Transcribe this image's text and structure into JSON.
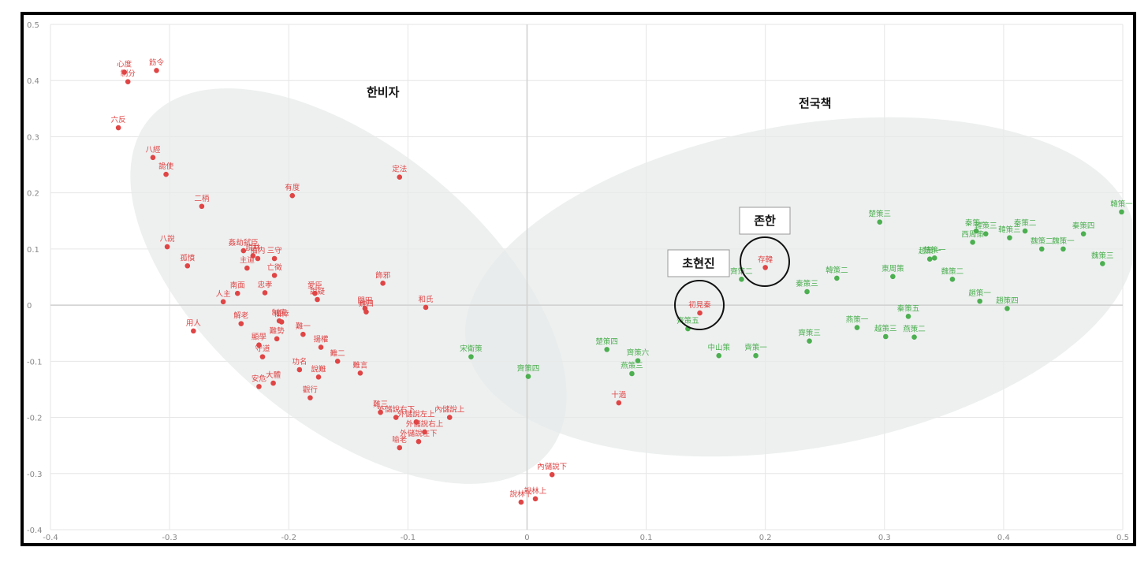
{
  "colors": {
    "hanfeizi": "#e04545",
    "zhanguoce": "#4caf50"
  },
  "group_labels": {
    "hanfeizi": "한비자",
    "zhanguoce": "전국책"
  },
  "callouts": {
    "cunhan": "존한",
    "chuxianqin": "초현진"
  },
  "chart_data": {
    "type": "scatter",
    "xlim": [
      -0.4,
      0.5
    ],
    "ylim": [
      -0.4,
      0.5
    ],
    "grid": true,
    "x_ticks": [
      "-0.4",
      "-0.3",
      "-0.2",
      "-0.1",
      "0",
      "0.1",
      "0.2",
      "0.3",
      "0.4",
      "0.5"
    ],
    "y_ticks": [
      "-0.4",
      "-0.3",
      "-0.2",
      "-0.1",
      "0",
      "0.1",
      "0.2",
      "0.3",
      "0.4",
      "0.5"
    ],
    "series": [
      {
        "name": "한비자",
        "points": [
          {
            "label": "心度",
            "x": -0.338,
            "y": 0.415
          },
          {
            "label": "飭令",
            "x": -0.311,
            "y": 0.418
          },
          {
            "label": "制分",
            "x": -0.335,
            "y": 0.398
          },
          {
            "label": "六反",
            "x": -0.343,
            "y": 0.316
          },
          {
            "label": "八經",
            "x": -0.314,
            "y": 0.263
          },
          {
            "label": "詭使",
            "x": -0.303,
            "y": 0.233
          },
          {
            "label": "二柄",
            "x": -0.273,
            "y": 0.176
          },
          {
            "label": "八說",
            "x": -0.302,
            "y": 0.104
          },
          {
            "label": "孤憤",
            "x": -0.285,
            "y": 0.07
          },
          {
            "label": "姦劫弑臣",
            "x": -0.238,
            "y": 0.097
          },
          {
            "label": "説林",
            "x": -0.23,
            "y": 0.088
          },
          {
            "label": "備内",
            "x": -0.226,
            "y": 0.083
          },
          {
            "label": "三守",
            "x": -0.212,
            "y": 0.083
          },
          {
            "label": "主道",
            "x": -0.235,
            "y": 0.066
          },
          {
            "label": "亡徵",
            "x": -0.212,
            "y": 0.053
          },
          {
            "label": "南面",
            "x": -0.243,
            "y": 0.021
          },
          {
            "label": "人主",
            "x": -0.255,
            "y": 0.006
          },
          {
            "label": "忠孝",
            "x": -0.22,
            "y": 0.022
          },
          {
            "label": "用人",
            "x": -0.28,
            "y": -0.046
          },
          {
            "label": "解老",
            "x": -0.24,
            "y": -0.033
          },
          {
            "label": "制度",
            "x": -0.208,
            "y": -0.028
          },
          {
            "label": "備倖",
            "x": -0.206,
            "y": -0.03
          },
          {
            "label": "難勢",
            "x": -0.21,
            "y": -0.06
          },
          {
            "label": "難一",
            "x": -0.188,
            "y": -0.052
          },
          {
            "label": "顯學",
            "x": -0.225,
            "y": -0.071
          },
          {
            "label": "守道",
            "x": -0.222,
            "y": -0.092
          },
          {
            "label": "揚權",
            "x": -0.173,
            "y": -0.075
          },
          {
            "label": "難二",
            "x": -0.159,
            "y": -0.1
          },
          {
            "label": "功名",
            "x": -0.191,
            "y": -0.115
          },
          {
            "label": "大體",
            "x": -0.213,
            "y": -0.139
          },
          {
            "label": "安危",
            "x": -0.225,
            "y": -0.145
          },
          {
            "label": "說難",
            "x": -0.175,
            "y": -0.128
          },
          {
            "label": "觀行",
            "x": -0.182,
            "y": -0.165
          },
          {
            "label": "難言",
            "x": -0.14,
            "y": -0.121
          },
          {
            "label": "有度",
            "x": -0.197,
            "y": 0.195
          },
          {
            "label": "愛臣",
            "x": -0.178,
            "y": 0.021
          },
          {
            "label": "說疑",
            "x": -0.176,
            "y": 0.01
          },
          {
            "label": "飾邪",
            "x": -0.121,
            "y": 0.039
          },
          {
            "label": "定法",
            "x": -0.107,
            "y": 0.228
          },
          {
            "label": "問田",
            "x": -0.136,
            "y": -0.006
          },
          {
            "label": "難四",
            "x": -0.135,
            "y": -0.012
          },
          {
            "label": "和氏",
            "x": -0.085,
            "y": -0.004
          },
          {
            "label": "難三",
            "x": -0.123,
            "y": -0.191
          },
          {
            "label": "外儲說右下",
            "x": -0.11,
            "y": -0.2
          },
          {
            "label": "外儲說左上",
            "x": -0.093,
            "y": -0.208
          },
          {
            "label": "內儲說上",
            "x": -0.065,
            "y": -0.2
          },
          {
            "label": "外儲說右上",
            "x": -0.086,
            "y": -0.226
          },
          {
            "label": "外儲說左下",
            "x": -0.091,
            "y": -0.243
          },
          {
            "label": "喻老",
            "x": -0.107,
            "y": -0.254
          },
          {
            "label": "內儲說下",
            "x": 0.021,
            "y": -0.302
          },
          {
            "label": "說林上",
            "x": 0.007,
            "y": -0.345
          },
          {
            "label": "說林下",
            "x": -0.005,
            "y": -0.351
          },
          {
            "label": "十過",
            "x": 0.077,
            "y": -0.174
          },
          {
            "label": "存韓",
            "x": 0.2,
            "y": 0.067
          },
          {
            "label": "初見秦",
            "x": 0.145,
            "y": -0.014
          }
        ]
      },
      {
        "name": "전국책",
        "points": [
          {
            "label": "宋衛策",
            "x": -0.047,
            "y": -0.092
          },
          {
            "label": "齊策四",
            "x": 0.001,
            "y": -0.127
          },
          {
            "label": "楚策四",
            "x": 0.067,
            "y": -0.079
          },
          {
            "label": "齊策六",
            "x": 0.093,
            "y": -0.099
          },
          {
            "label": "燕策三",
            "x": 0.088,
            "y": -0.122
          },
          {
            "label": "齊策五",
            "x": 0.135,
            "y": -0.042
          },
          {
            "label": "中山策",
            "x": 0.161,
            "y": -0.09
          },
          {
            "label": "齊策一",
            "x": 0.192,
            "y": -0.09
          },
          {
            "label": "齊策二",
            "x": 0.18,
            "y": 0.046
          },
          {
            "label": "秦策三",
            "x": 0.235,
            "y": 0.024
          },
          {
            "label": "韓策二",
            "x": 0.26,
            "y": 0.048
          },
          {
            "label": "齊策三",
            "x": 0.237,
            "y": -0.064
          },
          {
            "label": "燕策一",
            "x": 0.277,
            "y": -0.04
          },
          {
            "label": "楚策三",
            "x": 0.296,
            "y": 0.148
          },
          {
            "label": "東周策",
            "x": 0.307,
            "y": 0.051
          },
          {
            "label": "越策三",
            "x": 0.301,
            "y": -0.056
          },
          {
            "label": "燕策二",
            "x": 0.325,
            "y": -0.057
          },
          {
            "label": "秦策五",
            "x": 0.32,
            "y": -0.02
          },
          {
            "label": "趙策一",
            "x": 0.338,
            "y": 0.082
          },
          {
            "label": "楚策一",
            "x": 0.342,
            "y": 0.084
          },
          {
            "label": "魏策二",
            "x": 0.357,
            "y": 0.046
          },
          {
            "label": "趙策一",
            "x": 0.38,
            "y": 0.007
          },
          {
            "label": "趙策四",
            "x": 0.403,
            "y": -0.006
          },
          {
            "label": "西周策",
            "x": 0.374,
            "y": 0.112
          },
          {
            "label": "秦策一",
            "x": 0.377,
            "y": 0.132
          },
          {
            "label": "韓策三",
            "x": 0.385,
            "y": 0.127
          },
          {
            "label": "秦策二",
            "x": 0.418,
            "y": 0.132
          },
          {
            "label": "韓策三",
            "x": 0.405,
            "y": 0.12
          },
          {
            "label": "魏策二",
            "x": 0.432,
            "y": 0.1
          },
          {
            "label": "魏策一",
            "x": 0.45,
            "y": 0.1
          },
          {
            "label": "秦策四",
            "x": 0.467,
            "y": 0.127
          },
          {
            "label": "魏策三",
            "x": 0.483,
            "y": 0.074
          },
          {
            "label": "韓策一",
            "x": 0.499,
            "y": 0.166
          }
        ]
      }
    ]
  }
}
